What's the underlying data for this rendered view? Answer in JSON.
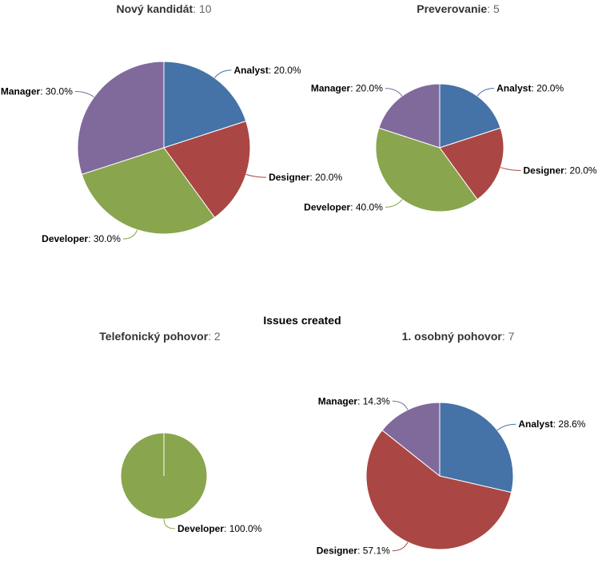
{
  "title": "Issues created",
  "colors": {
    "Analyst": "#4572A7",
    "Designer": "#AA4643",
    "Developer": "#89A54E",
    "Manager": "#80699B"
  },
  "chart_data": [
    {
      "type": "pie",
      "title": "Nový kandidát",
      "count": "10",
      "slices": [
        {
          "name": "Analyst",
          "value": 20.0,
          "label": "20.0%"
        },
        {
          "name": "Designer",
          "value": 20.0,
          "label": "20.0%"
        },
        {
          "name": "Developer",
          "value": 30.0,
          "label": "30.0%"
        },
        {
          "name": "Manager",
          "value": 30.0,
          "label": "30.0%"
        }
      ]
    },
    {
      "type": "pie",
      "title": "Preverovanie",
      "count": "5",
      "slices": [
        {
          "name": "Analyst",
          "value": 20.0,
          "label": "20.0%"
        },
        {
          "name": "Designer",
          "value": 20.0,
          "label": "20.0%"
        },
        {
          "name": "Developer",
          "value": 40.0,
          "label": "40.0%"
        },
        {
          "name": "Manager",
          "value": 20.0,
          "label": "20.0%"
        }
      ]
    },
    {
      "type": "pie",
      "title": "Telefonický pohovor",
      "count": "2",
      "slices": [
        {
          "name": "Developer",
          "value": 100.0,
          "label": "100.0%"
        }
      ]
    },
    {
      "type": "pie",
      "title": "1. osobný pohovor",
      "count": "7",
      "slices": [
        {
          "name": "Analyst",
          "value": 28.6,
          "label": "28.6%"
        },
        {
          "name": "Designer",
          "value": 57.1,
          "label": "57.1%"
        },
        {
          "name": "Manager",
          "value": 14.3,
          "label": "14.3%"
        }
      ]
    }
  ]
}
